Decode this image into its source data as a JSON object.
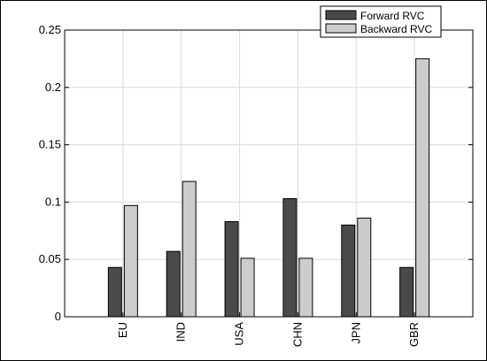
{
  "chart_data": {
    "type": "bar",
    "categories": [
      "EU",
      "IND",
      "USA",
      "CHN",
      "JPN",
      "GBR"
    ],
    "series": [
      {
        "name": "Forward RVC",
        "values": [
          0.043,
          0.057,
          0.083,
          0.103,
          0.08,
          0.043
        ],
        "color": "#4a4a4a"
      },
      {
        "name": "Backward RVC",
        "values": [
          0.097,
          0.118,
          0.051,
          0.051,
          0.086,
          0.225
        ],
        "color": "#cccccc"
      }
    ],
    "yticks": [
      "0",
      "0.05",
      "0.1",
      "0.15",
      "0.2",
      "0.25"
    ],
    "ylim": [
      0,
      0.25
    ],
    "grid": true,
    "legend_position": "top-right",
    "xlabel": "",
    "ylabel": "",
    "title": ""
  }
}
